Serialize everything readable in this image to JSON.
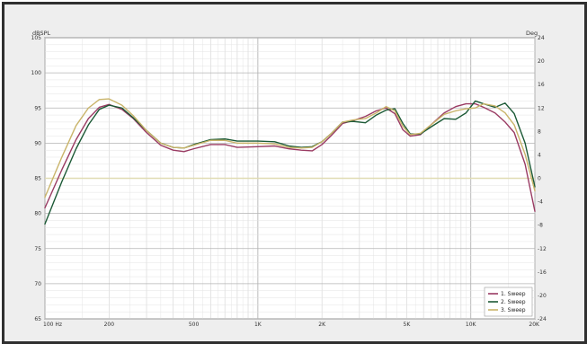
{
  "chart_data": {
    "type": "line",
    "title": "",
    "xlabel": "",
    "ylabel": "dBSPL",
    "y2label": "Deg",
    "x_scale": "log",
    "xlim": [
      100,
      20000
    ],
    "ylim": [
      65,
      105
    ],
    "y2lim": [
      -24,
      24
    ],
    "grid": true,
    "legend_position": "bottom-right",
    "x_tick_labels": [
      {
        "value": 100,
        "label": "100 Hz"
      },
      {
        "value": 200,
        "label": "200"
      },
      {
        "value": 500,
        "label": "500"
      },
      {
        "value": 1000,
        "label": "1K"
      },
      {
        "value": 2000,
        "label": "2K"
      },
      {
        "value": 5000,
        "label": "5K"
      },
      {
        "value": 10000,
        "label": "10K"
      },
      {
        "value": 20000,
        "label": "20K"
      }
    ],
    "y_tick_labels": [
      "105",
      "100",
      "95",
      "90",
      "85",
      "80",
      "75",
      "70",
      "65"
    ],
    "y_ticks": [
      105,
      100,
      95,
      90,
      85,
      80,
      75,
      70,
      65
    ],
    "y2_tick_labels": [
      "24",
      "20",
      "16",
      "12",
      "8",
      "4",
      "0",
      "-4",
      "-8",
      "-12",
      "-16",
      "-20",
      "-24"
    ],
    "y2_ticks": [
      24,
      20,
      16,
      12,
      8,
      4,
      0,
      -4,
      -8,
      -12,
      -16,
      -20,
      -24
    ],
    "reference_line": {
      "axis": "y2",
      "value": 0,
      "color": "#e0dcb4"
    },
    "series": [
      {
        "name": "1. Sweep",
        "color": "#9a3b63",
        "points": [
          [
            100,
            80.8
          ],
          [
            120,
            86.2
          ],
          [
            140,
            90.5
          ],
          [
            160,
            93.5
          ],
          [
            180,
            95.1
          ],
          [
            200,
            95.5
          ],
          [
            230,
            94.8
          ],
          [
            260,
            93.5
          ],
          [
            300,
            91.5
          ],
          [
            350,
            89.7
          ],
          [
            400,
            89.0
          ],
          [
            450,
            88.8
          ],
          [
            500,
            89.2
          ],
          [
            600,
            89.8
          ],
          [
            700,
            89.8
          ],
          [
            800,
            89.4
          ],
          [
            1000,
            89.5
          ],
          [
            1200,
            89.6
          ],
          [
            1400,
            89.2
          ],
          [
            1600,
            89.0
          ],
          [
            1800,
            88.9
          ],
          [
            2000,
            89.8
          ],
          [
            2200,
            91.0
          ],
          [
            2500,
            92.8
          ],
          [
            2800,
            93.2
          ],
          [
            3200,
            93.8
          ],
          [
            3600,
            94.6
          ],
          [
            4000,
            95.0
          ],
          [
            4400,
            94.2
          ],
          [
            4800,
            91.9
          ],
          [
            5200,
            91.0
          ],
          [
            5800,
            91.2
          ],
          [
            6500,
            92.6
          ],
          [
            7500,
            94.3
          ],
          [
            8500,
            95.2
          ],
          [
            9500,
            95.6
          ],
          [
            10500,
            95.6
          ],
          [
            11500,
            95.1
          ],
          [
            13000,
            94.3
          ],
          [
            14500,
            93.0
          ],
          [
            16000,
            91.5
          ],
          [
            18000,
            87.0
          ],
          [
            20000,
            80.3
          ]
        ]
      },
      {
        "name": "2. Sweep",
        "color": "#1c5a36",
        "points": [
          [
            100,
            78.5
          ],
          [
            120,
            84.5
          ],
          [
            140,
            89.2
          ],
          [
            160,
            92.6
          ],
          [
            180,
            94.8
          ],
          [
            200,
            95.4
          ],
          [
            230,
            95.0
          ],
          [
            260,
            93.6
          ],
          [
            300,
            91.8
          ],
          [
            350,
            90.0
          ],
          [
            400,
            89.4
          ],
          [
            450,
            89.3
          ],
          [
            500,
            89.8
          ],
          [
            600,
            90.5
          ],
          [
            700,
            90.6
          ],
          [
            800,
            90.3
          ],
          [
            1000,
            90.3
          ],
          [
            1200,
            90.2
          ],
          [
            1400,
            89.6
          ],
          [
            1600,
            89.4
          ],
          [
            1800,
            89.5
          ],
          [
            2000,
            90.2
          ],
          [
            2200,
            91.3
          ],
          [
            2500,
            93.0
          ],
          [
            2800,
            93.1
          ],
          [
            3200,
            92.9
          ],
          [
            3600,
            94.0
          ],
          [
            4000,
            94.7
          ],
          [
            4400,
            94.9
          ],
          [
            4800,
            92.8
          ],
          [
            5200,
            91.3
          ],
          [
            5800,
            91.3
          ],
          [
            6500,
            92.3
          ],
          [
            7500,
            93.5
          ],
          [
            8500,
            93.4
          ],
          [
            9500,
            94.3
          ],
          [
            10500,
            96.0
          ],
          [
            11500,
            95.6
          ],
          [
            13000,
            95.1
          ],
          [
            14500,
            95.7
          ],
          [
            16000,
            94.2
          ],
          [
            18000,
            90.0
          ],
          [
            20000,
            83.8
          ]
        ]
      },
      {
        "name": "3. Sweep",
        "color": "#c9b46a",
        "points": [
          [
            100,
            82.3
          ],
          [
            120,
            88.0
          ],
          [
            140,
            92.5
          ],
          [
            160,
            95.0
          ],
          [
            180,
            96.2
          ],
          [
            200,
            96.3
          ],
          [
            230,
            95.4
          ],
          [
            260,
            93.9
          ],
          [
            300,
            91.8
          ],
          [
            350,
            90.0
          ],
          [
            400,
            89.4
          ],
          [
            450,
            89.3
          ],
          [
            500,
            89.7
          ],
          [
            600,
            90.4
          ],
          [
            700,
            90.4
          ],
          [
            800,
            90.0
          ],
          [
            1000,
            90.0
          ],
          [
            1200,
            89.9
          ],
          [
            1400,
            89.4
          ],
          [
            1600,
            89.3
          ],
          [
            1800,
            89.4
          ],
          [
            2000,
            90.2
          ],
          [
            2200,
            91.3
          ],
          [
            2500,
            93.0
          ],
          [
            2800,
            93.3
          ],
          [
            3200,
            93.5
          ],
          [
            3600,
            94.3
          ],
          [
            4000,
            95.2
          ],
          [
            4400,
            94.6
          ],
          [
            4800,
            92.4
          ],
          [
            5200,
            91.2
          ],
          [
            5800,
            91.4
          ],
          [
            6500,
            92.6
          ],
          [
            7500,
            94.1
          ],
          [
            8500,
            94.6
          ],
          [
            9500,
            94.9
          ],
          [
            10500,
            95.0
          ],
          [
            11500,
            95.6
          ],
          [
            13000,
            95.3
          ],
          [
            14500,
            94.3
          ],
          [
            16000,
            92.6
          ],
          [
            18000,
            88.4
          ],
          [
            20000,
            83.2
          ]
        ]
      }
    ]
  }
}
